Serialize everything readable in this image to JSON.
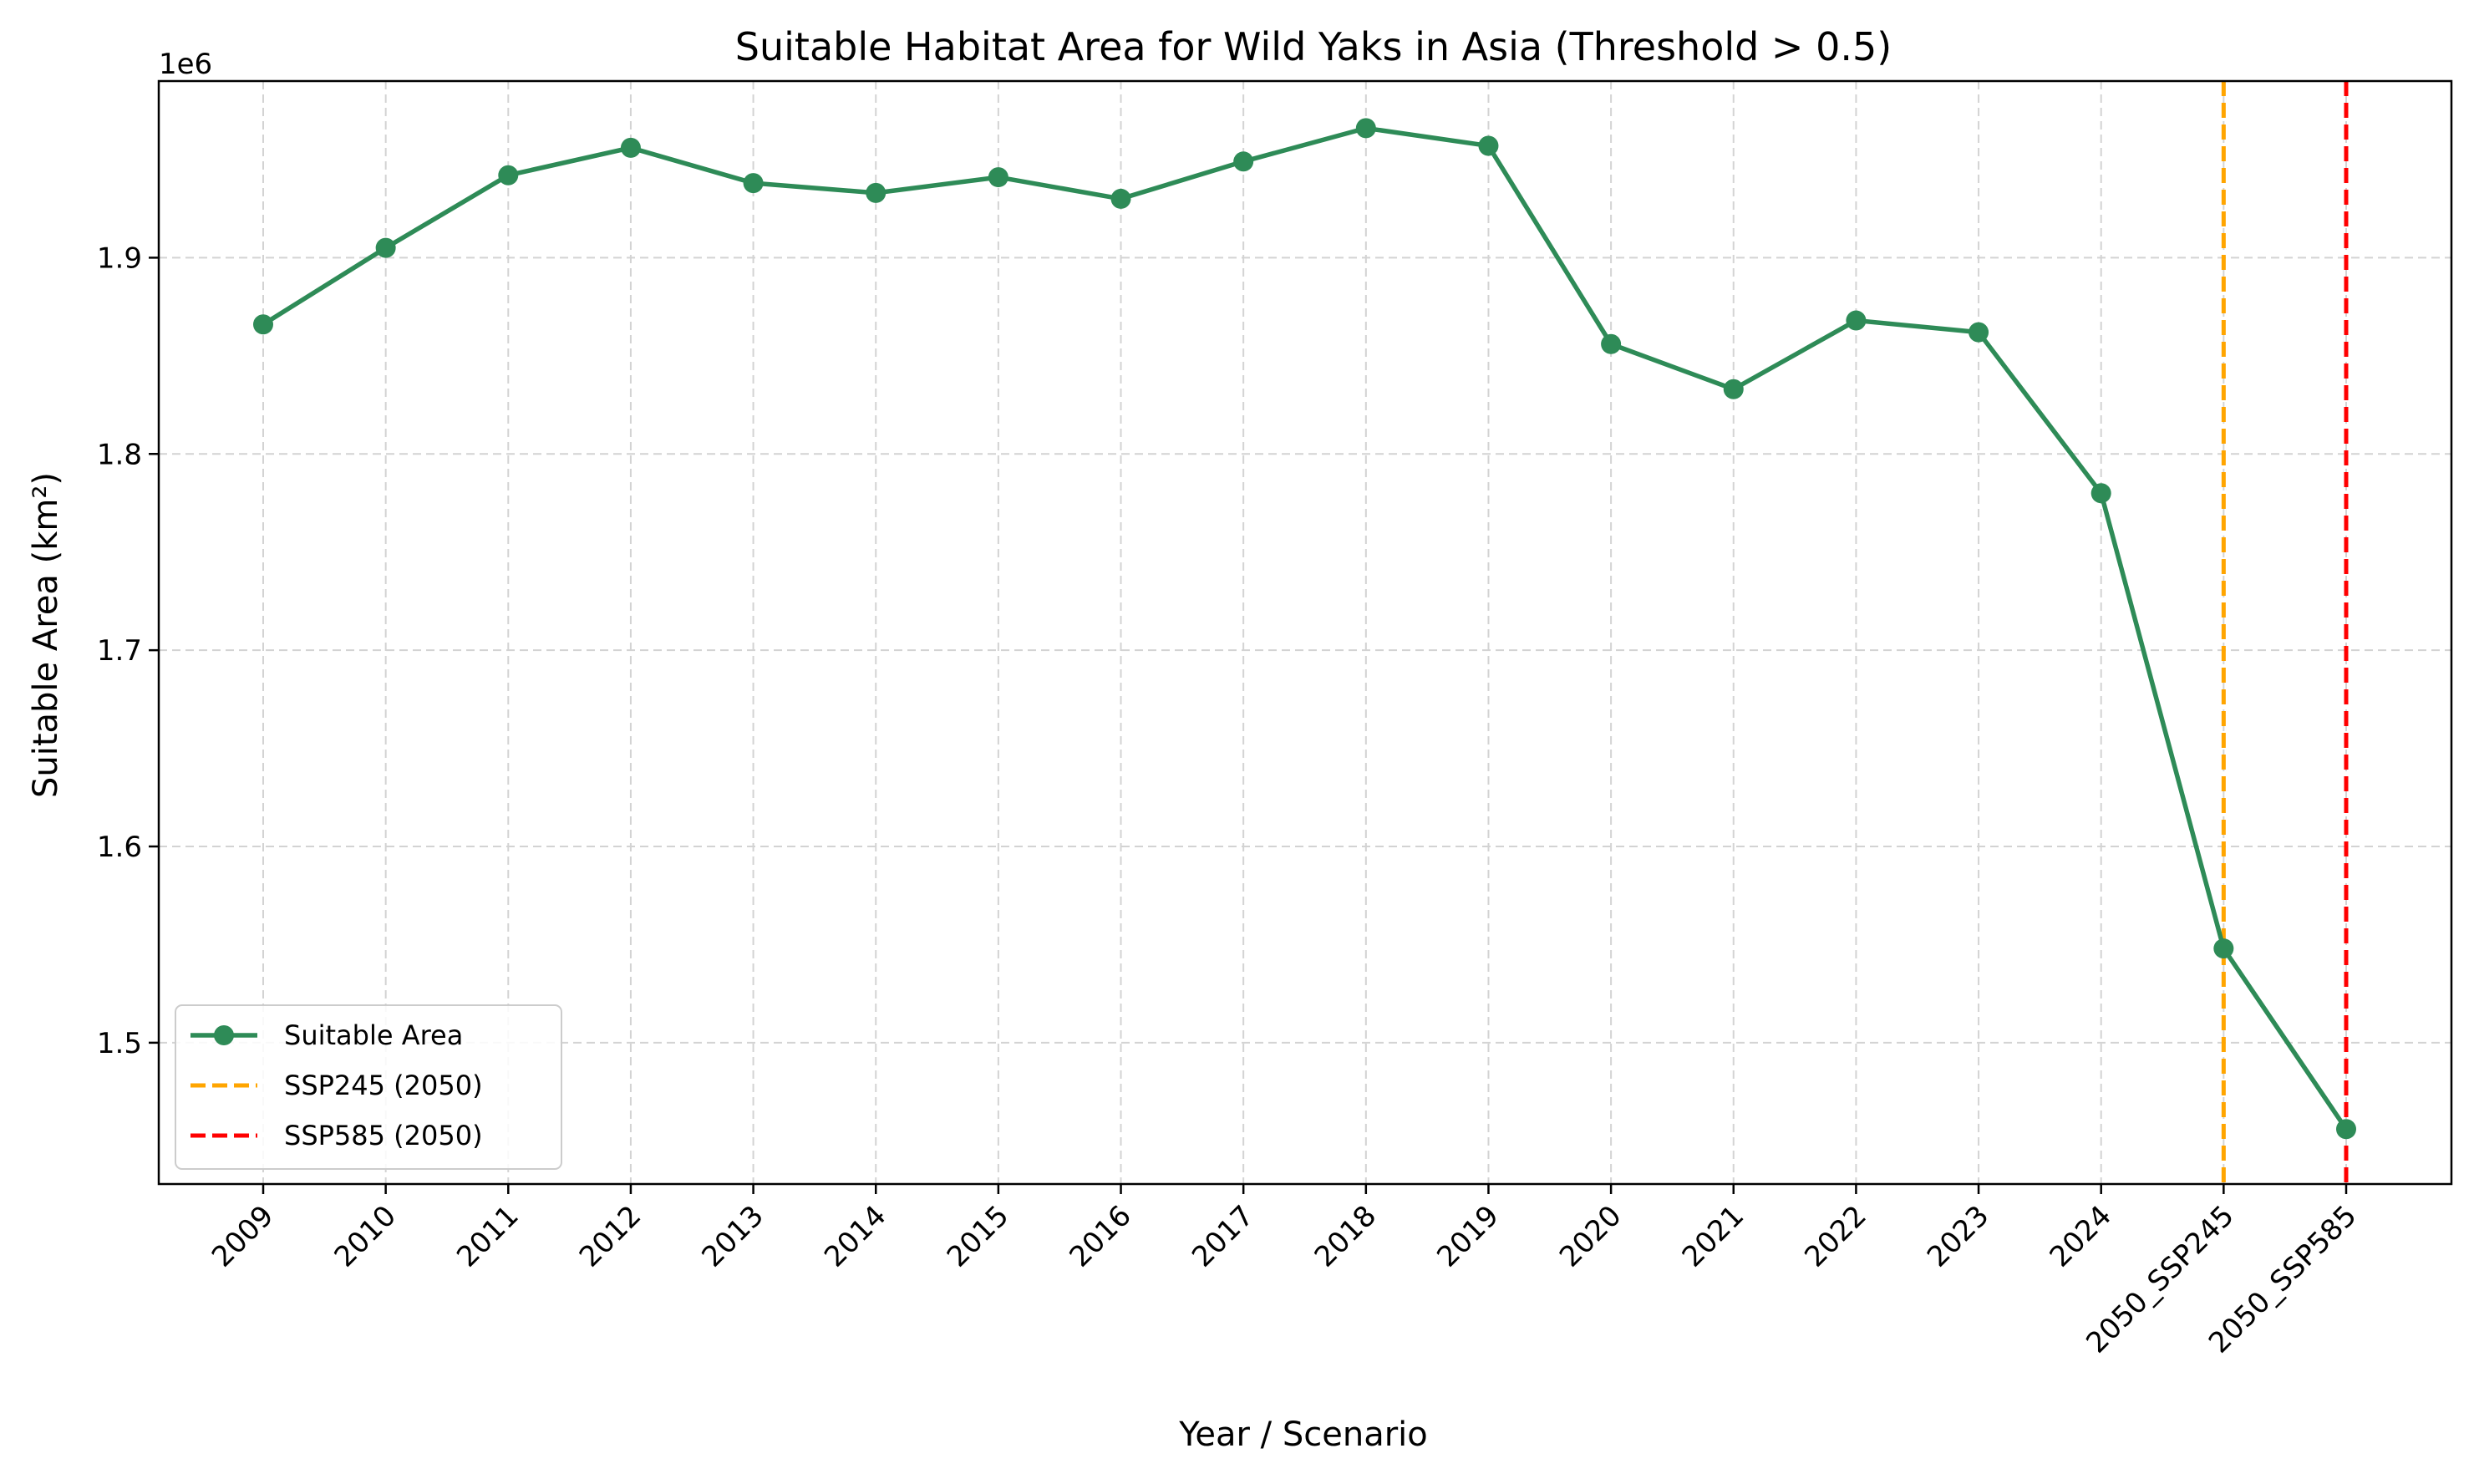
{
  "chart_data": {
    "type": "line",
    "title": "Suitable Habitat Area for Wild Yaks in Asia (Threshold > 0.5)",
    "xlabel": "Year / Scenario",
    "ylabel": "Suitable Area (km²)",
    "y_offset_label": "1e6",
    "y_scale": 1000000,
    "ylim": [
      1.428,
      1.99
    ],
    "yticks": [
      1.5,
      1.6,
      1.7,
      1.8,
      1.9
    ],
    "ytick_labels": [
      "1.5",
      "1.6",
      "1.7",
      "1.8",
      "1.9"
    ],
    "grid": true,
    "legend_position": "lower-left",
    "categories": [
      "2009",
      "2010",
      "2011",
      "2012",
      "2013",
      "2014",
      "2015",
      "2016",
      "2017",
      "2018",
      "2019",
      "2020",
      "2021",
      "2022",
      "2023",
      "2024",
      "2050_SSP245",
      "2050_SSP585"
    ],
    "series": [
      {
        "name": "Suitable Area",
        "color": "#2e8b57",
        "marker": "circle",
        "values": [
          1.866,
          1.905,
          1.942,
          1.956,
          1.938,
          1.933,
          1.941,
          1.93,
          1.949,
          1.966,
          1.957,
          1.856,
          1.833,
          1.868,
          1.862,
          1.78,
          1.548,
          1.456
        ]
      }
    ],
    "reference_lines": [
      {
        "name": "SSP245 (2050)",
        "category": "2050_SSP245",
        "color": "#ffa500",
        "style": "dashed"
      },
      {
        "name": "SSP585 (2050)",
        "category": "2050_SSP585",
        "color": "#ff0000",
        "style": "dashed"
      }
    ]
  }
}
